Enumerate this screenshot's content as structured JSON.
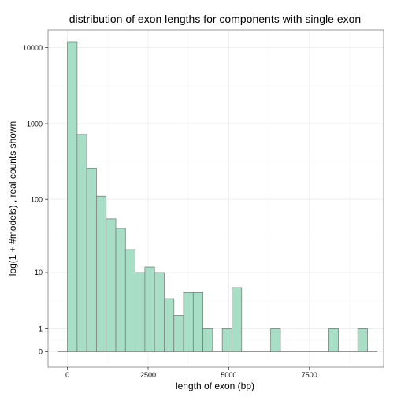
{
  "chart_data": {
    "type": "bar",
    "title": "distribution of exon lengths for components with single exon",
    "xlabel": "length of exon (bp)",
    "ylabel": "log(1 + #models) , real counts shown",
    "x_ticks": [
      "0",
      "2500",
      "5000",
      "7500"
    ],
    "x_tick_values": [
      0,
      2500,
      5000,
      7500
    ],
    "y_ticks": [
      "0",
      "1",
      "10",
      "100",
      "1000",
      "10000"
    ],
    "y_tick_values": [
      0,
      1,
      10,
      100,
      1000,
      10000
    ],
    "xlim": [
      -600,
      9800
    ],
    "y_scale": "log1p",
    "binwidth": 300,
    "bins": [
      {
        "start": -300,
        "count": 0
      },
      {
        "start": 0,
        "count": 12000
      },
      {
        "start": 300,
        "count": 720
      },
      {
        "start": 600,
        "count": 260
      },
      {
        "start": 900,
        "count": 110
      },
      {
        "start": 1200,
        "count": 55
      },
      {
        "start": 1500,
        "count": 41
      },
      {
        "start": 1800,
        "count": 21
      },
      {
        "start": 2100,
        "count": 10
      },
      {
        "start": 2400,
        "count": 12
      },
      {
        "start": 2700,
        "count": 10
      },
      {
        "start": 3000,
        "count": 4
      },
      {
        "start": 3300,
        "count": 2
      },
      {
        "start": 3600,
        "count": 5
      },
      {
        "start": 3900,
        "count": 5
      },
      {
        "start": 4200,
        "count": 1
      },
      {
        "start": 4500,
        "count": 0
      },
      {
        "start": 4800,
        "count": 1
      },
      {
        "start": 5100,
        "count": 6
      },
      {
        "start": 5400,
        "count": 0
      },
      {
        "start": 5700,
        "count": 0
      },
      {
        "start": 6000,
        "count": 0
      },
      {
        "start": 6300,
        "count": 1
      },
      {
        "start": 6600,
        "count": 0
      },
      {
        "start": 6900,
        "count": 0
      },
      {
        "start": 7200,
        "count": 0
      },
      {
        "start": 7500,
        "count": 0
      },
      {
        "start": 7800,
        "count": 0
      },
      {
        "start": 8100,
        "count": 1
      },
      {
        "start": 8400,
        "count": 0
      },
      {
        "start": 8700,
        "count": 0
      },
      {
        "start": 9000,
        "count": 1
      },
      {
        "start": 9300,
        "count": 0
      }
    ],
    "colors": {
      "fill": "#a8ddc6",
      "stroke": "#7f7f7f"
    },
    "grid": true,
    "legend": "none"
  }
}
